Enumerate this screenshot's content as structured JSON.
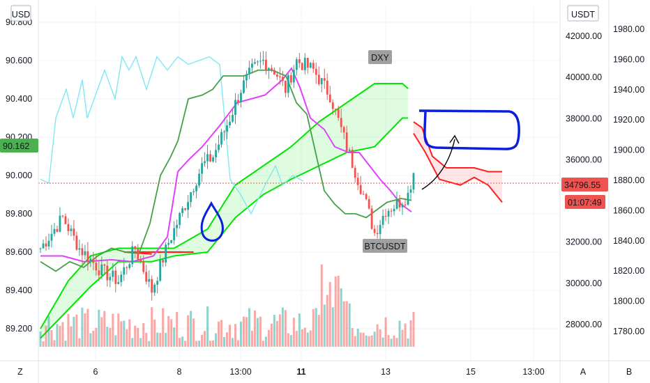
{
  "chart_data": {
    "type": "candlestick",
    "symbols": {
      "primary": "DXY",
      "overlay": "BTCUSDT",
      "extra": ""
    },
    "currency_left": "USD",
    "currency_right": "USDT",
    "left_axis": {
      "min": 89.09,
      "max": 90.88,
      "ticks": [
        "89.200",
        "89.400",
        "89.600",
        "89.800",
        "90.000",
        "90.200",
        "90.400",
        "90.600",
        "90.800"
      ]
    },
    "mid_axis": {
      "min": 26000,
      "max": 42500,
      "ticks": [
        "28000.00",
        "30000.00",
        "32000.00",
        "34000.00",
        "36000.00",
        "38000.00",
        "40000.00",
        "42000.00"
      ]
    },
    "right_axis": {
      "min": 1765,
      "max": 1985,
      "ticks": [
        "1780.00",
        "1800.00",
        "1820.00",
        "1840.00",
        "1860.00",
        "1880.00",
        "1900.00",
        "1920.00",
        "1940.00",
        "1960.00",
        "1980.00"
      ]
    },
    "time_ticks": [
      "6",
      "8",
      "13:00",
      "11",
      "13",
      "15",
      "13:00"
    ],
    "bold_time_ticks": [
      "11"
    ],
    "last_price_left": "90.162",
    "last_price_right": "34796.55",
    "countdown": "01:07:49",
    "bottom_left_button": "Z",
    "bottom_right_buttons": [
      "A",
      "B"
    ],
    "colors": {
      "up": "#26a69a",
      "down": "#ef5350",
      "cloud_up": "#00e600",
      "cloud_down": "#ff1f1f",
      "pink": "#e040fb",
      "cyan": "#7fe8f2",
      "green_dark": "#43a047",
      "annot": "#0a1fd6"
    }
  }
}
